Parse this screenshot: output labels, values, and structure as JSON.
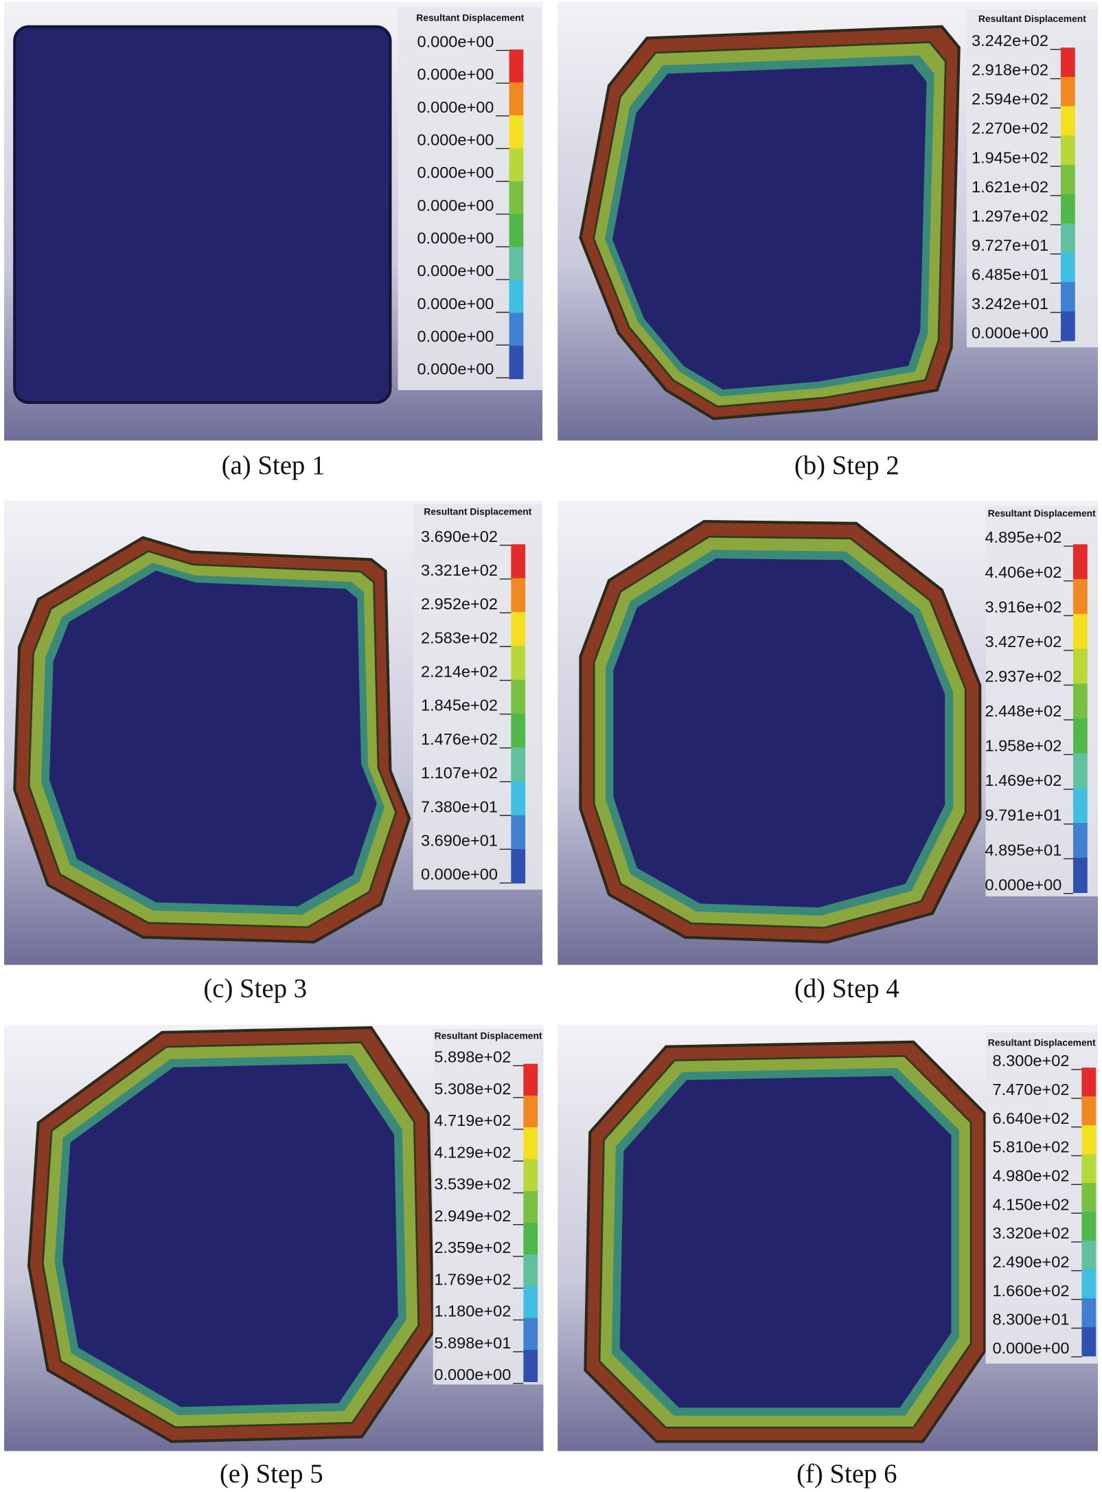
{
  "panels": [
    {
      "caption": "(a) Step 1",
      "legend_title": "Resultant Displacement",
      "legend_labels": [
        "0.000e+00",
        "0.000e+00",
        "0.000e+00",
        "0.000e+00",
        "0.000e+00",
        "0.000e+00",
        "0.000e+00",
        "0.000e+00",
        "0.000e+00",
        "0.000e+00",
        "0.000e+00"
      ]
    },
    {
      "caption": "(b) Step 2",
      "legend_title": "Resultant Displacement",
      "legend_labels": [
        "3.242e+02",
        "2.918e+02",
        "2.594e+02",
        "2.270e+02",
        "1.945e+02",
        "1.621e+02",
        "1.297e+02",
        "9.727e+01",
        "6.485e+01",
        "3.242e+01",
        "0.000e+00"
      ]
    },
    {
      "caption": "(c) Step 3",
      "legend_title": "Resultant Displacement",
      "legend_labels": [
        "3.690e+02",
        "3.321e+02",
        "2.952e+02",
        "2.583e+02",
        "2.214e+02",
        "1.845e+02",
        "1.476e+02",
        "1.107e+02",
        "7.380e+01",
        "3.690e+01",
        "0.000e+00"
      ]
    },
    {
      "caption": "(d) Step 4",
      "legend_title": "Resultant Displacement",
      "legend_labels": [
        "4.895e+02",
        "4.406e+02",
        "3.916e+02",
        "3.427e+02",
        "2.937e+02",
        "2.448e+02",
        "1.958e+02",
        "1.469e+02",
        "9.791e+01",
        "4.895e+01",
        "0.000e+00"
      ]
    },
    {
      "caption": "(e) Step 5",
      "legend_title": "Resultant Displacement",
      "legend_labels": [
        "5.898e+02",
        "5.308e+02",
        "4.719e+02",
        "4.129e+02",
        "3.539e+02",
        "2.949e+02",
        "2.359e+02",
        "1.769e+02",
        "1.180e+02",
        "5.898e+01",
        "0.000e+00"
      ]
    },
    {
      "caption": "(f) Step 6",
      "legend_title": "Resultant Displacement",
      "legend_labels": [
        "8.300e+02",
        "7.470e+02",
        "6.640e+02",
        "5.810e+02",
        "4.980e+02",
        "4.150e+02",
        "3.320e+02",
        "2.490e+02",
        "1.660e+02",
        "8.300e+01",
        "0.000e+00"
      ]
    }
  ]
}
